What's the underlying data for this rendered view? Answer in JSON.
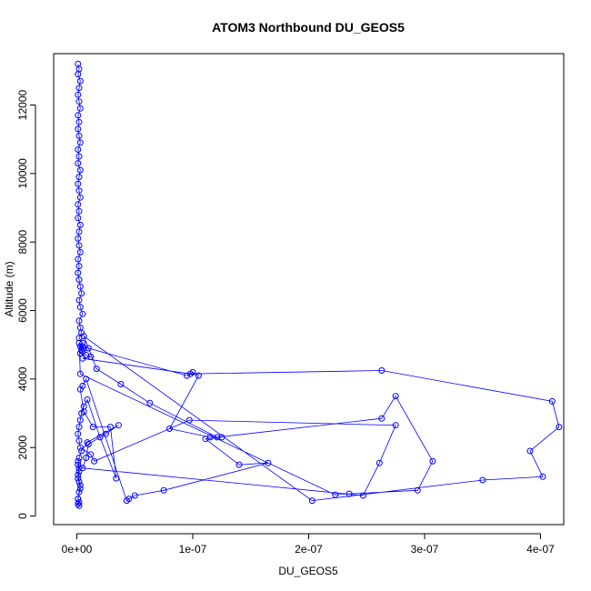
{
  "chart_data": {
    "type": "line",
    "title": "ATOM3 Northbound DU_GEOS5",
    "xlabel": "DU_GEOS5",
    "ylabel": "Altitude (m)",
    "xlim": [
      -2e-08,
      4.2e-07
    ],
    "ylim": [
      -250,
      13500
    ],
    "x_ticks": [
      0,
      1e-07,
      2e-07,
      3e-07,
      4e-07
    ],
    "x_tick_labels": [
      "0e+00",
      "1e-07",
      "2e-07",
      "3e-07",
      "4e-07"
    ],
    "y_ticks": [
      0,
      2000,
      4000,
      6000,
      8000,
      10000,
      12000
    ],
    "y_tick_labels": [
      "0",
      "2000",
      "4000",
      "6000",
      "8000",
      "10000",
      "12000"
    ],
    "grid": false,
    "series": [
      {
        "color": "#0000ff",
        "marker": "open-circle",
        "x": [
          1e-09,
          2e-09,
          1e-09,
          3e-09,
          2e-09,
          1e-09,
          2e-09,
          3e-09,
          1e-09,
          2e-09,
          1e-09,
          2e-09,
          3e-09,
          1e-09,
          2e-09,
          1e-09,
          3e-09,
          2e-09,
          1e-09,
          2e-09,
          3e-09,
          1e-09,
          2e-09,
          1e-09,
          3e-09,
          2e-09,
          1e-09,
          2e-09,
          3e-09,
          1e-09,
          2e-09,
          1e-09,
          2e-09,
          3e-09,
          4e-09,
          2e-09,
          3e-09,
          5e-09,
          2e-09,
          3e-09,
          4e-09,
          2e-09,
          5e-09,
          3e-09,
          6e-09,
          4e-09,
          5e-09,
          3e-09,
          8e-09,
          1.2e-08,
          5e-09,
          9.8e-08,
          2.63e-07,
          4.1e-07,
          4.16e-07,
          3.91e-07,
          4.02e-07,
          3.5e-07,
          2.03e-07,
          6e-09,
          1.7e-08,
          3.8e-08,
          6.3e-08,
          1.21e-07,
          2.63e-07,
          2.75e-07,
          3.07e-07,
          2.94e-07,
          2.35e-07,
          2.23e-07,
          3e-09,
          2e-09,
          5e-09,
          1e-08,
          9.5e-08,
          1e-07,
          1.05e-07,
          8e-08,
          1.15e-07,
          1.25e-07,
          1.11e-07,
          1.4e-07,
          1.65e-07,
          7.5e-08,
          5e-08,
          4.5e-08,
          4.3e-08,
          8e-09,
          5e-09,
          3e-09,
          6e-09,
          1.4e-08,
          2.9e-08,
          3.4e-08,
          2e-08,
          9e-09,
          6e-09,
          4e-09,
          3e-09,
          2e-09,
          1e-09,
          2e-09,
          3e-09,
          1.2e-08,
          1.5e-08,
          9.7e-08,
          2.75e-07,
          2.61e-07,
          2.47e-07,
          5e-09,
          8e-09,
          1e-08,
          2.5e-08,
          3.6e-08,
          9e-09,
          4e-09,
          2e-09,
          1e-09,
          2e-09,
          1e-09,
          3e-09,
          2e-09,
          1e-09,
          2e-09,
          1e-09,
          2e-09,
          1e-09,
          3e-09,
          2e-09,
          1e-09,
          2e-09,
          1e-09
        ],
        "y": [
          13200,
          13050,
          12900,
          12700,
          12500,
          12300,
          12100,
          11900,
          11700,
          11500,
          11300,
          11100,
          10900,
          10700,
          10500,
          10300,
          10100,
          9900,
          9700,
          9500,
          9300,
          9100,
          8900,
          8700,
          8500,
          8300,
          8100,
          7900,
          7700,
          7500,
          7300,
          7100,
          6900,
          6700,
          6500,
          6300,
          6100,
          5900,
          5700,
          5500,
          5350,
          5200,
          5050,
          4950,
          4900,
          4850,
          4800,
          4750,
          4700,
          4650,
          4600,
          4150,
          4250,
          3350,
          2600,
          1900,
          1150,
          1050,
          450,
          5250,
          4300,
          3850,
          3300,
          2300,
          2850,
          3500,
          1600,
          750,
          650,
          620,
          4150,
          5050,
          4950,
          4900,
          4100,
          4200,
          4100,
          2550,
          2300,
          2300,
          2250,
          1500,
          1550,
          750,
          600,
          500,
          450,
          4000,
          3800,
          3700,
          3050,
          2600,
          2600,
          1100,
          2300,
          3400,
          3200,
          3000,
          2800,
          2600,
          2400,
          2200,
          2000,
          1800,
          1600,
          2800,
          2650,
          1550,
          600,
          1400,
          1700,
          2100,
          2400,
          2650,
          2150,
          1900,
          1700,
          1500,
          1300,
          1100,
          900,
          700,
          500,
          400,
          350,
          300,
          500,
          800,
          1000,
          1200,
          1400,
          1600
        ]
      }
    ]
  }
}
